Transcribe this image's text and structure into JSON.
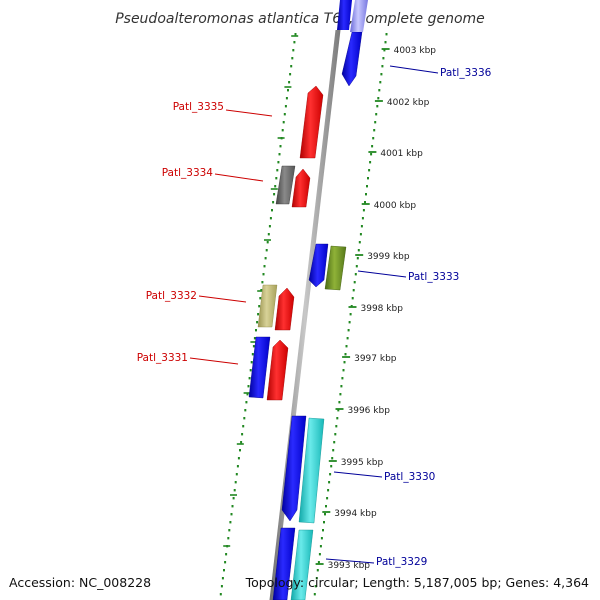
{
  "title": "Pseudoalteromonas atlantica T6c, complete genome",
  "footer": {
    "accession": "Accession: NC_008228",
    "summary": "Topology: circular; Length: 5,187,005 bp; Genes: 4,364"
  },
  "colors": {
    "forward_label": "#cc0000",
    "reverse_label": "#000099",
    "axis_dots": "#228822",
    "backbone": "#888888"
  },
  "ticks": [
    "4003 kbp",
    "4002 kbp",
    "4001 kbp",
    "4000 kbp",
    "3999 kbp",
    "3998 kbp",
    "3997 kbp",
    "3996 kbp",
    "3995 kbp",
    "3994 kbp",
    "3993 kbp"
  ],
  "gene_labels": [
    {
      "text": "Patl_3336",
      "strand": "reverse"
    },
    {
      "text": "Patl_3335",
      "strand": "forward"
    },
    {
      "text": "Patl_3334",
      "strand": "forward"
    },
    {
      "text": "Patl_3333",
      "strand": "reverse"
    },
    {
      "text": "Patl_3332",
      "strand": "forward"
    },
    {
      "text": "Patl_3331",
      "strand": "forward"
    },
    {
      "text": "Patl_3330",
      "strand": "reverse"
    },
    {
      "text": "Patl_3329",
      "strand": "reverse"
    }
  ],
  "features": [
    {
      "name": "feature-reverse-top-1",
      "color": "#1515e0"
    },
    {
      "name": "feature-reverse-top-2",
      "color": "#8888ee"
    },
    {
      "name": "feature-forward-3335",
      "color": "#ee1111"
    },
    {
      "name": "feature-grey-3334",
      "color": "#666666"
    },
    {
      "name": "feature-forward-3334",
      "color": "#ee1111"
    },
    {
      "name": "feature-reverse-3333",
      "color": "#1515e0"
    },
    {
      "name": "feature-olive-3333",
      "color": "#6b8e23"
    },
    {
      "name": "feature-khaki-3332",
      "color": "#bdb76b"
    },
    {
      "name": "feature-forward-3332",
      "color": "#ee1111"
    },
    {
      "name": "feature-reverse-3331",
      "color": "#1515e0"
    },
    {
      "name": "feature-forward-3331",
      "color": "#ee1111"
    },
    {
      "name": "feature-reverse-3330",
      "color": "#1515e0"
    },
    {
      "name": "feature-cyan-3330",
      "color": "#22cccc"
    },
    {
      "name": "feature-reverse-3329",
      "color": "#1515e0"
    },
    {
      "name": "feature-cyan-3329",
      "color": "#22cccc"
    }
  ]
}
